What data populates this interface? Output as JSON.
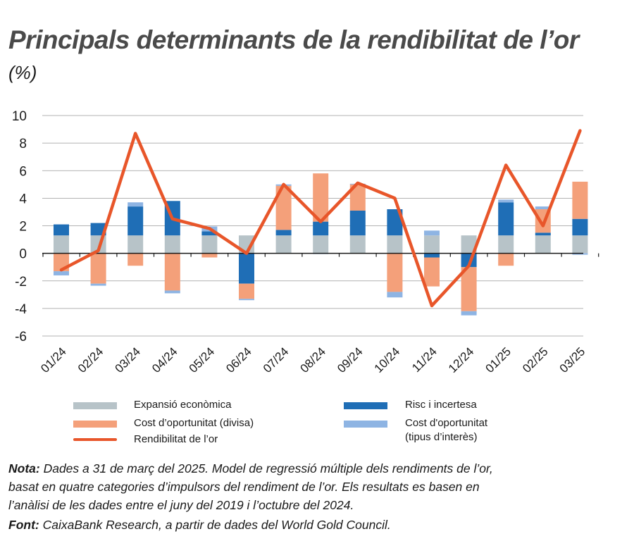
{
  "title": "Principals determinants de la rendibilitat de l’or",
  "subtitle": "(%)",
  "legend": {
    "econ": "Expansió econòmica",
    "currency": "Cost d’oportunitat (divisa)",
    "line": "Rendibilitat de l’or",
    "risk": "Risc i incertesa",
    "rates_1": "Cost d'oportunitat",
    "rates_2": "(tipus d’interès)"
  },
  "notes": {
    "nota_label": "Nota:",
    "nota_1": " Dades a 31 de març del 2025. Model de regressió múltiple dels rendiments de l’or,",
    "nota_2": "basat en quatre categories d’impulsors del rendiment de l’or. Els resultats es basen en",
    "nota_3": "l’anàlisi de les dades entre el juny del 2019 i l’octubre del 2024.",
    "font_label": "Font:",
    "font_text": " CaixaBank Research, a partir de dades del World Gold Council."
  },
  "colors": {
    "econ": "#b7c3c8",
    "currency": "#f4a07a",
    "risk": "#1f6eb6",
    "rates": "#8eb4e3",
    "line": "#e8562a"
  },
  "chart_data": {
    "type": "bar",
    "stacked": true,
    "categories": [
      "01/24",
      "02/24",
      "03/24",
      "04/24",
      "05/24",
      "06/24",
      "07/24",
      "08/24",
      "09/24",
      "10/24",
      "11/24",
      "12/24",
      "01/25",
      "02/25",
      "03/25"
    ],
    "ylim": [
      -6,
      10
    ],
    "yticks": [
      -6,
      -4,
      -2,
      0,
      2,
      4,
      6,
      8,
      10
    ],
    "grid": true,
    "series": [
      {
        "name": "Expansió econòmica",
        "key": "econ",
        "values": [
          1.3,
          1.3,
          1.3,
          1.3,
          1.3,
          1.3,
          1.3,
          1.3,
          1.3,
          1.3,
          1.3,
          1.3,
          1.3,
          1.3,
          1.3
        ]
      },
      {
        "name": "Risc i incertesa",
        "key": "risk",
        "values": [
          0.8,
          0.9,
          2.1,
          2.5,
          0.3,
          -2.2,
          0.4,
          1.0,
          1.8,
          1.9,
          -0.3,
          -1.0,
          2.4,
          0.2,
          1.2
        ]
      },
      {
        "name": "Cost d’oportunitat (divisa)",
        "key": "currency",
        "values": [
          -1.3,
          -2.2,
          -0.9,
          -2.7,
          -0.3,
          -1.1,
          3.2,
          3.5,
          1.9,
          -2.8,
          -2.1,
          -3.2,
          -0.9,
          1.7,
          2.7
        ]
      },
      {
        "name": "Cost d'oportunitat (tipus d’interès)",
        "key": "rates",
        "values": [
          -0.3,
          -0.15,
          0.3,
          -0.2,
          0.35,
          -0.1,
          0.1,
          -0.05,
          0.05,
          -0.4,
          0.35,
          -0.3,
          0.2,
          0.2,
          -0.1
        ]
      },
      {
        "name": "Rendibilitat de l’or",
        "key": "line",
        "type": "line",
        "values": [
          -1.2,
          0.2,
          8.7,
          2.5,
          1.8,
          0.0,
          5.0,
          2.3,
          5.1,
          4.0,
          -3.8,
          -0.9,
          6.4,
          2.0,
          8.9
        ]
      }
    ]
  }
}
